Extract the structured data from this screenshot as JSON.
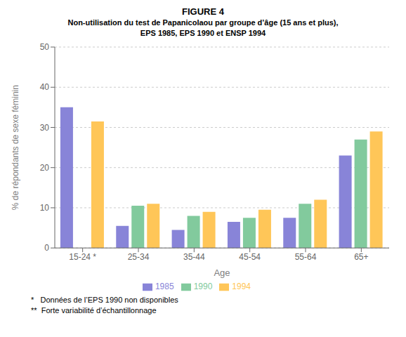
{
  "chart_data": {
    "type": "bar",
    "title": "FIGURE 4",
    "subtitle": [
      "Non-utilisation du test de Papanicolaou par groupe d’âge (15 ans et plus),",
      "EPS 1985, EPS 1990 et ENSP 1994"
    ],
    "x_label": "Age",
    "y_label": "% de répondants de sexe féminin",
    "categories": [
      "15-24 *",
      "25-34",
      "35-44",
      "45-54",
      "55-64",
      "65+"
    ],
    "series": [
      {
        "name": "1985",
        "color": "#8884d8",
        "values": [
          35,
          5.5,
          4.5,
          6.5,
          7.5,
          23
        ]
      },
      {
        "name": "1990",
        "color": "#82ca9d",
        "values": [
          null,
          10.5,
          8.0,
          7.5,
          11.0,
          27.0
        ]
      },
      {
        "name": "1994",
        "color": "#ffc658",
        "values": [
          31.5,
          11.0,
          9.0,
          9.5,
          12.0,
          29.0
        ]
      }
    ],
    "ylim": [
      0,
      50
    ],
    "yticks": [
      0,
      10,
      20,
      30,
      40,
      50
    ],
    "grid": true,
    "legend": "bottom",
    "annotations": [
      "*   Données de l’EPS 1990 non disponibles",
      "**  Forte variabilité d’échantillonnage"
    ]
  }
}
